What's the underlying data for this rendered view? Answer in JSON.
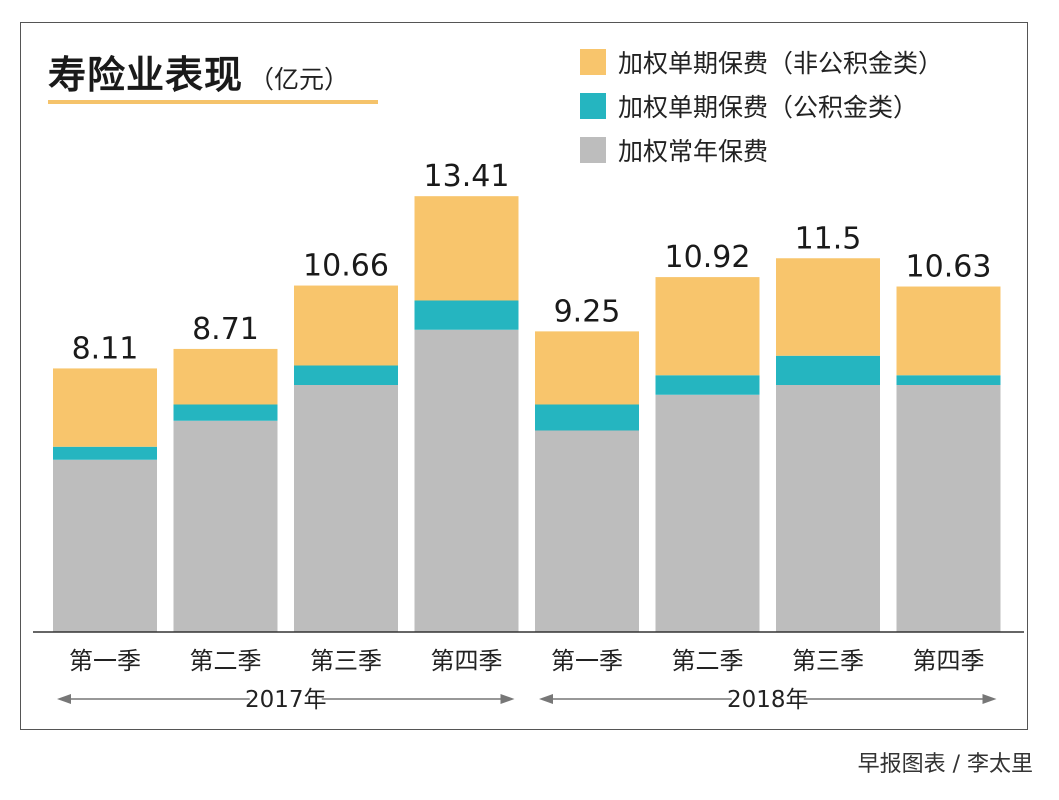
{
  "chart_data": {
    "type": "bar",
    "stacked": true,
    "title": "寿险业表现",
    "unit": "（亿元）",
    "categories": [
      "第一季",
      "第二季",
      "第三季",
      "第四季",
      "第一季",
      "第二季",
      "第三季",
      "第四季"
    ],
    "groups": [
      {
        "label": "2017年",
        "from": 0,
        "to": 3
      },
      {
        "label": "2018年",
        "from": 4,
        "to": 7
      }
    ],
    "totals": [
      "8.11",
      "8.71",
      "10.66",
      "13.41",
      "9.25",
      "10.92",
      "11.5",
      "10.63"
    ],
    "series": [
      {
        "name": "加权常年保费",
        "color": "#bdbdbd",
        "values": [
          5.3,
          6.5,
          7.6,
          9.3,
          6.2,
          7.3,
          7.6,
          7.6
        ]
      },
      {
        "name": "加权单期保费（公积金类）",
        "color": "#25b5c0",
        "values": [
          0.4,
          0.5,
          0.6,
          0.9,
          0.8,
          0.6,
          0.9,
          0.3
        ]
      },
      {
        "name": "加权单期保费（非公积金类）",
        "color": "#f8c56c",
        "values": [
          2.41,
          1.71,
          2.46,
          3.21,
          2.25,
          3.02,
          3.0,
          2.73
        ]
      }
    ],
    "legend_order": [
      2,
      1,
      0
    ],
    "ylim": [
      0,
      16
    ],
    "grid": false,
    "legend_position": "top-right"
  },
  "source": "早报图表 / 李太里"
}
